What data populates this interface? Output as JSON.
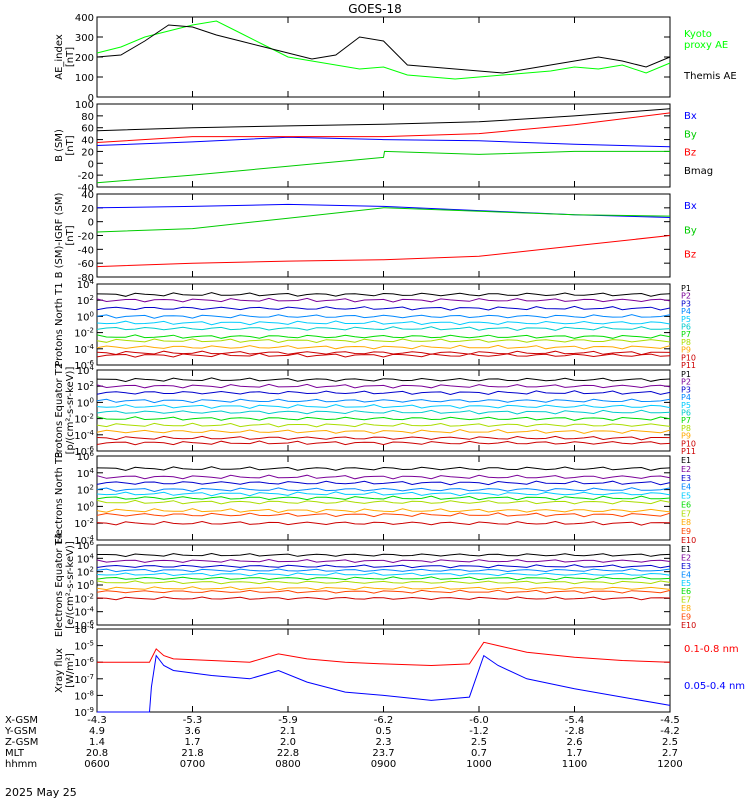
{
  "title": "GOES-18",
  "date_label": "2025 May 25",
  "chart_data": [
    {
      "type": "line",
      "ylabel": "AE_index [nT]",
      "ylim": [
        0,
        400
      ],
      "y_scale": "linear",
      "yticks": [
        "0",
        "100",
        "200",
        "300",
        "400"
      ],
      "series": [
        {
          "name": "Kyoto proxy AE",
          "color": "#00ff00",
          "x": [
            0,
            0.25,
            0.5,
            0.75,
            1,
            1.25,
            1.5,
            1.75,
            2,
            2.25,
            2.5,
            2.75,
            3,
            3.25,
            3.5,
            3.75,
            4,
            4.25,
            4.5,
            4.75,
            5,
            5.25,
            5.5,
            5.75,
            6
          ],
          "y": [
            220,
            250,
            300,
            330,
            360,
            380,
            320,
            260,
            200,
            180,
            160,
            140,
            150,
            110,
            100,
            90,
            100,
            110,
            120,
            130,
            150,
            140,
            160,
            120,
            170
          ]
        },
        {
          "name": "Themis AE",
          "color": "#000000",
          "x": [
            0,
            0.25,
            0.5,
            0.75,
            1,
            1.25,
            1.5,
            1.75,
            2,
            2.25,
            2.5,
            2.75,
            3,
            3.25,
            3.5,
            3.75,
            4,
            4.25,
            4.5,
            4.75,
            5,
            5.25,
            5.5,
            5.75,
            6
          ],
          "y": [
            200,
            210,
            280,
            360,
            350,
            310,
            280,
            250,
            220,
            190,
            210,
            300,
            280,
            160,
            150,
            140,
            130,
            120,
            140,
            160,
            180,
            200,
            180,
            150,
            200
          ]
        }
      ]
    },
    {
      "type": "line",
      "ylabel": "B (SM) [nT]",
      "ylim": [
        -40,
        100
      ],
      "y_scale": "linear",
      "yticks": [
        "-40",
        "-20",
        "0",
        "20",
        "40",
        "60",
        "80",
        "100"
      ],
      "series": [
        {
          "name": "Bx",
          "color": "#0000ff",
          "x": [
            0,
            1,
            2,
            3,
            4,
            5,
            6
          ],
          "y": [
            30,
            36,
            44,
            40,
            38,
            32,
            28
          ]
        },
        {
          "name": "By",
          "color": "#00cc00",
          "x": [
            0,
            1,
            2,
            3,
            3.01,
            4,
            5,
            6
          ],
          "y": [
            -33,
            -20,
            -5,
            10,
            20,
            15,
            20,
            20
          ]
        },
        {
          "name": "Bz",
          "color": "#ff0000",
          "x": [
            0,
            1,
            2,
            3,
            4,
            5,
            6
          ],
          "y": [
            35,
            45,
            45,
            45,
            50,
            65,
            85
          ]
        },
        {
          "name": "Bmag",
          "color": "#000000",
          "x": [
            0,
            1,
            2,
            3,
            4,
            5,
            6
          ],
          "y": [
            55,
            60,
            63,
            66,
            70,
            80,
            92
          ]
        }
      ]
    },
    {
      "type": "line",
      "ylabel": "B (SM)-IGRF (SM) [nT]",
      "ylim": [
        -80,
        40
      ],
      "y_scale": "linear",
      "yticks": [
        "-80",
        "-60",
        "-40",
        "-20",
        "0",
        "20",
        "40"
      ],
      "series": [
        {
          "name": "Bx",
          "color": "#0000ff",
          "x": [
            0,
            1,
            2,
            3,
            4,
            5,
            6
          ],
          "y": [
            20,
            22,
            25,
            22,
            16,
            10,
            6
          ]
        },
        {
          "name": "By",
          "color": "#00cc00",
          "x": [
            0,
            1,
            2,
            3,
            3.01,
            4,
            5,
            6
          ],
          "y": [
            -15,
            -10,
            5,
            20,
            20,
            15,
            10,
            8
          ]
        },
        {
          "name": "Bz",
          "color": "#ff0000",
          "x": [
            0,
            1,
            2,
            3,
            4,
            5,
            6
          ],
          "y": [
            -65,
            -60,
            -57,
            -55,
            -50,
            -35,
            -20
          ]
        }
      ]
    },
    {
      "type": "line",
      "ylabel": "Protons North T1",
      "y_scale": "log",
      "ylim": [
        -6,
        4
      ],
      "yticks": [
        "10^-6",
        "10^-4",
        "10^-2",
        "10^0",
        "10^2",
        "10^4"
      ],
      "series": [
        {
          "name": "P1",
          "color": "#000000",
          "log_level": 2.7
        },
        {
          "name": "P2",
          "color": "#7a0098",
          "log_level": 2.0
        },
        {
          "name": "P3",
          "color": "#0000cc",
          "log_level": 1.0
        },
        {
          "name": "P4",
          "color": "#0088ff",
          "log_level": 0.0
        },
        {
          "name": "P5",
          "color": "#00ccff",
          "log_level": -0.8
        },
        {
          "name": "P6",
          "color": "#00cccc",
          "log_level": -1.5
        },
        {
          "name": "P7",
          "color": "#00dd00",
          "log_level": -2.5
        },
        {
          "name": "P8",
          "color": "#aadd00",
          "log_level": -3.0
        },
        {
          "name": "P9",
          "color": "#ffaa00",
          "log_level": -3.8
        },
        {
          "name": "P10",
          "color": "#cc0000",
          "log_level": -4.5
        },
        {
          "name": "P11",
          "color": "#cc0000",
          "log_level": -4.8
        }
      ]
    },
    {
      "type": "line",
      "ylabel": "Protons Equator T2 [p/(cm²-s-sr-keV)]",
      "y_scale": "log",
      "ylim": [
        -6,
        4
      ],
      "yticks": [
        "10^-6",
        "10^-4",
        "10^-2",
        "10^0",
        "10^2",
        "10^4"
      ],
      "series": [
        {
          "name": "P1",
          "color": "#000000",
          "log_level": 2.8
        },
        {
          "name": "P2",
          "color": "#7a0098",
          "log_level": 2.0
        },
        {
          "name": "P3",
          "color": "#0000cc",
          "log_level": 1.2
        },
        {
          "name": "P4",
          "color": "#0088ff",
          "log_level": 0.2
        },
        {
          "name": "P5",
          "color": "#00ccff",
          "log_level": -0.5
        },
        {
          "name": "P6",
          "color": "#00cccc",
          "log_level": -1.2
        },
        {
          "name": "P7",
          "color": "#00dd00",
          "log_level": -2.0
        },
        {
          "name": "P8",
          "color": "#aadd00",
          "log_level": -2.8
        },
        {
          "name": "P9",
          "color": "#ffaa00",
          "log_level": -3.6
        },
        {
          "name": "P10",
          "color": "#cc0000",
          "log_level": -4.4
        },
        {
          "name": "P11",
          "color": "#cc0000",
          "log_level": -5.0
        }
      ]
    },
    {
      "type": "line",
      "ylabel": "Electrons North T3",
      "y_scale": "log",
      "ylim": [
        -4,
        6
      ],
      "yticks": [
        "10^-4",
        "10^-2",
        "10^0",
        "10^2",
        "10^4",
        "10^6"
      ],
      "series": [
        {
          "name": "E1",
          "color": "#000000",
          "log_level": 4.5
        },
        {
          "name": "E2",
          "color": "#7a0098",
          "log_level": 3.5
        },
        {
          "name": "E3",
          "color": "#0000cc",
          "log_level": 2.8
        },
        {
          "name": "E4",
          "color": "#0088ff",
          "log_level": 2.0
        },
        {
          "name": "E5",
          "color": "#00ccff",
          "log_level": 1.5
        },
        {
          "name": "E6",
          "color": "#00dd00",
          "log_level": 1.0
        },
        {
          "name": "E7",
          "color": "#aadd00",
          "log_level": 0.5
        },
        {
          "name": "E8",
          "color": "#ffaa00",
          "log_level": -0.5
        },
        {
          "name": "E9",
          "color": "#ff4400",
          "log_level": -1.0
        },
        {
          "name": "E10",
          "color": "#cc0000",
          "log_level": -2.0
        }
      ]
    },
    {
      "type": "line",
      "ylabel": "Electrons Equator T4 [e/(cm²-s-sr-keV)]",
      "y_scale": "log",
      "ylim": [
        -6,
        6
      ],
      "yticks": [
        "10^-6",
        "10^-4",
        "10^-2",
        "10^0",
        "10^2",
        "10^4",
        "10^6"
      ],
      "series": [
        {
          "name": "E1",
          "color": "#000000",
          "log_level": 4.5
        },
        {
          "name": "E2",
          "color": "#7a0098",
          "log_level": 3.6
        },
        {
          "name": "E3",
          "color": "#0000cc",
          "log_level": 2.8
        },
        {
          "name": "E4",
          "color": "#0088ff",
          "log_level": 2.2
        },
        {
          "name": "E5",
          "color": "#00ccff",
          "log_level": 1.6
        },
        {
          "name": "E6",
          "color": "#00dd00",
          "log_level": 1.0
        },
        {
          "name": "E7",
          "color": "#aadd00",
          "log_level": 0.4
        },
        {
          "name": "E8",
          "color": "#ffaa00",
          "log_level": -0.5
        },
        {
          "name": "E9",
          "color": "#ff4400",
          "log_level": -1.0
        },
        {
          "name": "E10",
          "color": "#cc0000",
          "log_level": -2.0
        }
      ]
    },
    {
      "type": "line",
      "ylabel": "Xray flux [W/m²]",
      "y_scale": "log",
      "ylim": [
        -9,
        -4
      ],
      "yticks": [
        "10^-9",
        "10^-8",
        "10^-7",
        "10^-6",
        "10^-5",
        "10^-4"
      ],
      "series": [
        {
          "name": "0.1-0.8 nm",
          "color": "#ff0000",
          "x": [
            0,
            0.55,
            0.62,
            0.7,
            0.8,
            1.2,
            1.6,
            1.9,
            2.2,
            2.6,
            3.0,
            3.5,
            3.9,
            4.05,
            4.2,
            4.5,
            5.0,
            5.5,
            6
          ],
          "y": [
            -6.0,
            -6.0,
            -5.2,
            -5.6,
            -5.8,
            -5.9,
            -6.0,
            -5.5,
            -5.8,
            -6.0,
            -6.1,
            -6.2,
            -6.1,
            -4.8,
            -5.0,
            -5.4,
            -5.7,
            -5.9,
            -6.0
          ]
        },
        {
          "name": "0.05-0.4 nm",
          "color": "#0000ff",
          "x": [
            0,
            0.55,
            0.57,
            0.62,
            0.7,
            0.8,
            1.2,
            1.6,
            1.9,
            2.2,
            2.6,
            3.0,
            3.5,
            3.9,
            4.05,
            4.2,
            4.5,
            5.0,
            5.5,
            6
          ],
          "y": [
            -9.0,
            -9.0,
            -7.5,
            -5.6,
            -6.2,
            -6.5,
            -6.8,
            -7.0,
            -6.5,
            -7.2,
            -7.8,
            -8.0,
            -8.3,
            -8.1,
            -5.6,
            -6.2,
            -7.0,
            -7.6,
            -8.1,
            -8.6
          ]
        }
      ]
    }
  ],
  "x_axis": {
    "hours": [
      0,
      1,
      2,
      3,
      4,
      5,
      6
    ],
    "row_labels": [
      "X-GSM",
      "Y-GSM",
      "Z-GSM",
      "MLT",
      "hhmm"
    ],
    "rows": [
      [
        "-4.3",
        "-5.3",
        "-5.9",
        "-6.2",
        "-6.0",
        "-5.4",
        "-4.5"
      ],
      [
        "4.9",
        "3.6",
        "2.1",
        "0.5",
        "-1.2",
        "-2.8",
        "-4.2"
      ],
      [
        "1.4",
        "1.7",
        "2.0",
        "2.3",
        "2.5",
        "2.6",
        "2.5"
      ],
      [
        "20.8",
        "21.8",
        "22.8",
        "23.7",
        "0.7",
        "1.7",
        "2.7"
      ],
      [
        "0600",
        "0700",
        "0800",
        "0900",
        "1000",
        "1100",
        "1200"
      ]
    ]
  },
  "legend_labels": [
    [
      "Kyoto",
      "proxy AE",
      "Themis AE"
    ],
    [
      "Bx",
      "By",
      "Bz",
      "Bmag"
    ],
    [
      "Bx",
      "By",
      "Bz"
    ]
  ]
}
